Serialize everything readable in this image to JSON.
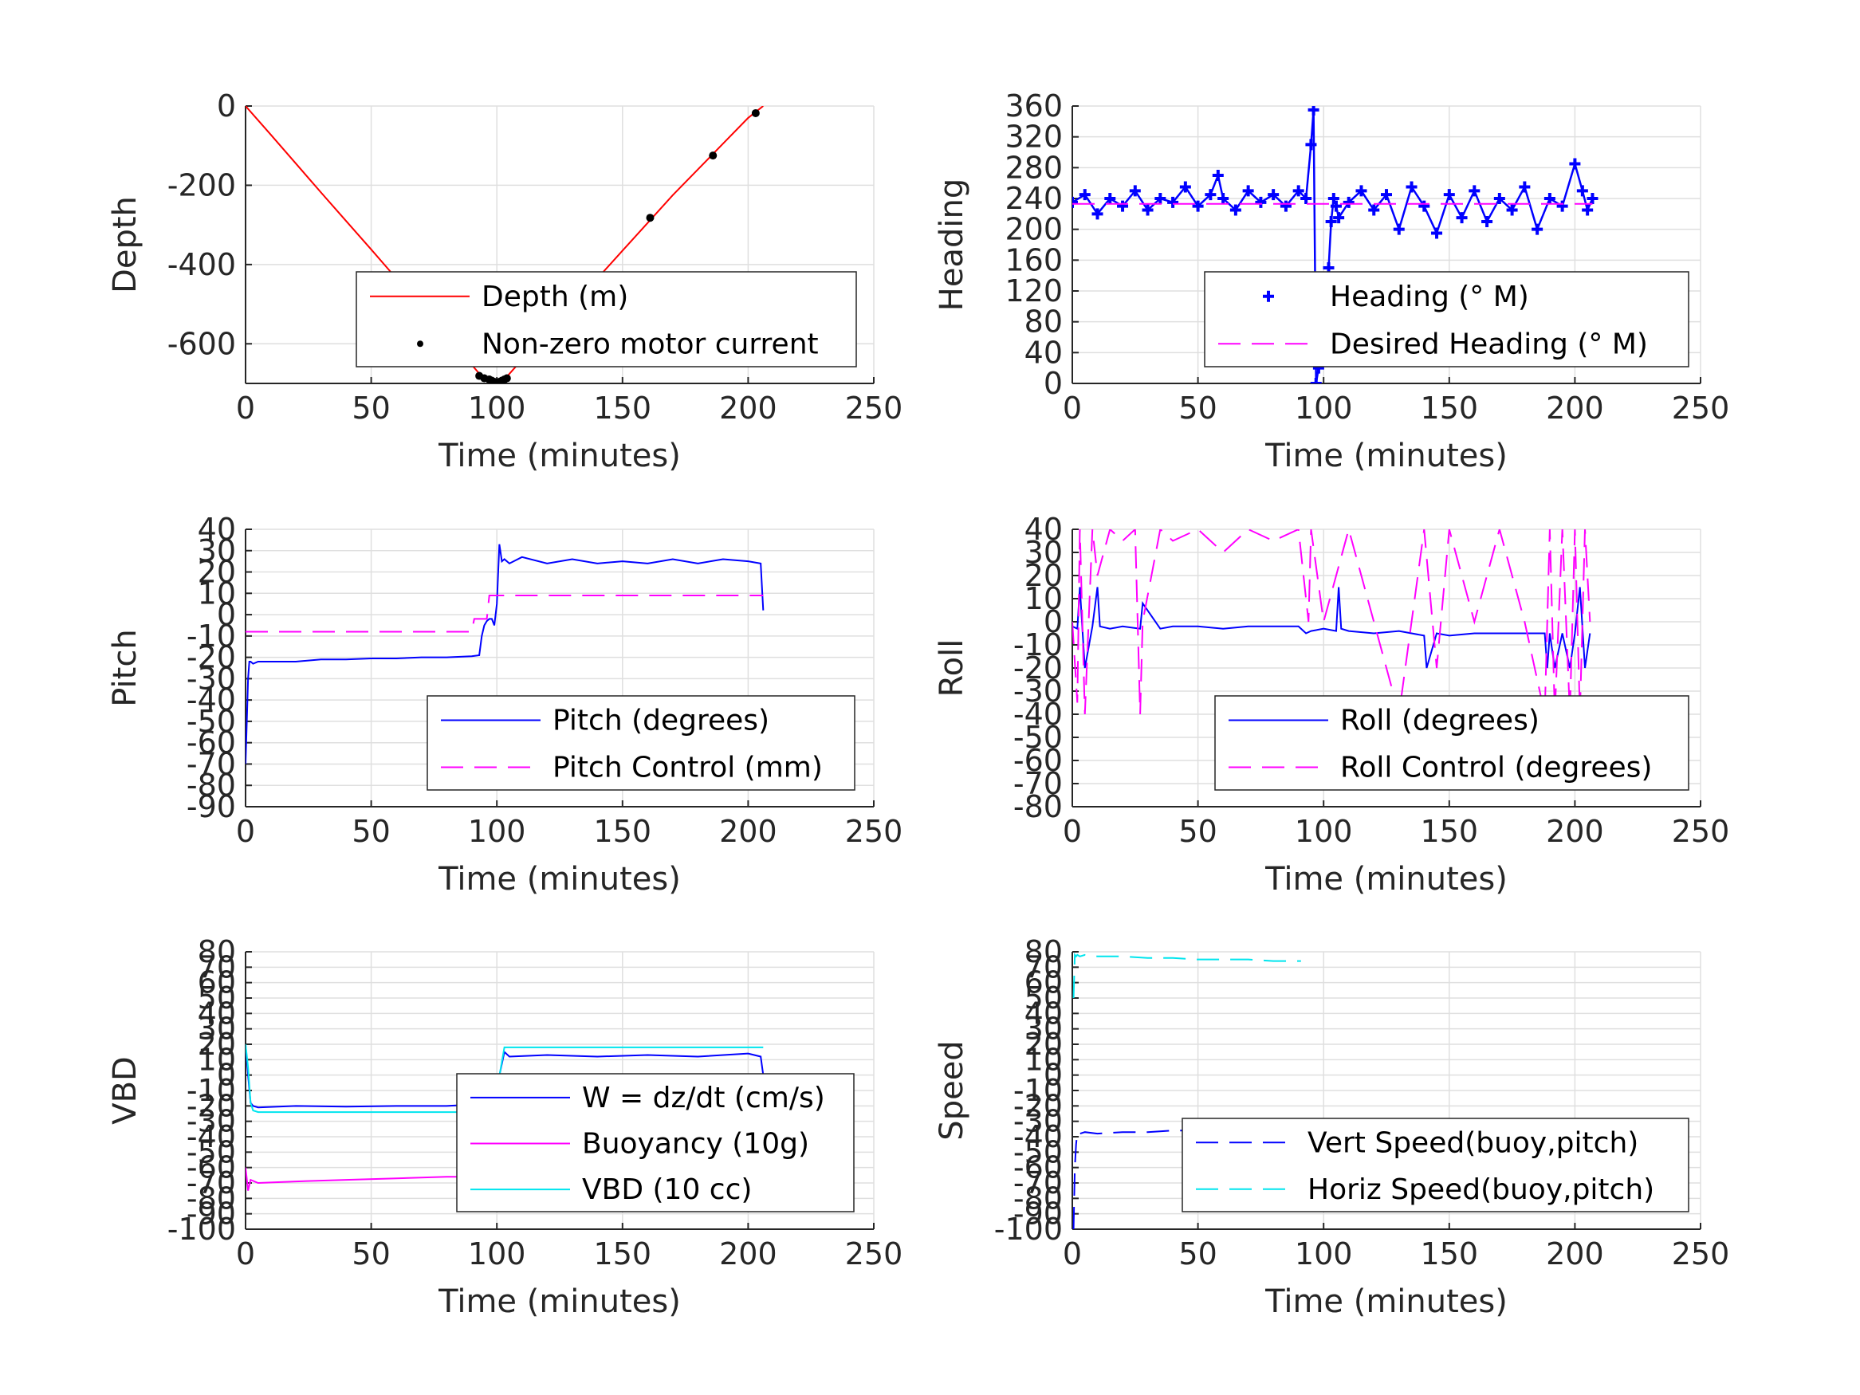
{
  "chart_data": [
    {
      "type": "line",
      "xlabel": "Time (minutes)",
      "ylabel": "Depth",
      "xlim": [
        0,
        250
      ],
      "ylim": [
        -700,
        0
      ],
      "xticks": [
        "0",
        "50",
        "100",
        "150",
        "200",
        "250"
      ],
      "yticks": [
        "0",
        "-200",
        "-400",
        "-600"
      ],
      "yticks_values": [
        0,
        -200,
        -400,
        -600
      ],
      "grid": true,
      "legend_placement": "lower-right",
      "series": [
        {
          "name": "Depth (m)",
          "style": "solid",
          "color": "#ff0000",
          "x": [
            0,
            10,
            20,
            30,
            40,
            50,
            60,
            70,
            80,
            90,
            95,
            100,
            103,
            110,
            120,
            130,
            140,
            150,
            160,
            170,
            180,
            190,
            200,
            206
          ],
          "y": [
            0,
            -72,
            -145,
            -218,
            -290,
            -362,
            -435,
            -508,
            -580,
            -653,
            -690,
            -700,
            -690,
            -640,
            -575,
            -505,
            -435,
            -365,
            -295,
            -225,
            -160,
            -95,
            -30,
            0
          ]
        },
        {
          "name": "Non-zero motor current",
          "style": "dots",
          "color": "#000000",
          "x": [
            93,
            95,
            97,
            98,
            99,
            100,
            101,
            102,
            103,
            104,
            161,
            186,
            203
          ],
          "y": [
            -681,
            -687,
            -690,
            -693,
            -696,
            -698,
            -696,
            -693,
            -690,
            -687,
            -282,
            -125,
            -18
          ]
        }
      ]
    },
    {
      "type": "scatter",
      "xlabel": "Time (minutes)",
      "ylabel": "Heading",
      "xlim": [
        0,
        250
      ],
      "ylim": [
        0,
        360
      ],
      "xticks": [
        "0",
        "50",
        "100",
        "150",
        "200",
        "250"
      ],
      "yticks": [
        "0",
        "40",
        "80",
        "120",
        "160",
        "200",
        "240",
        "280",
        "320",
        "360"
      ],
      "yticks_values": [
        0,
        40,
        80,
        120,
        160,
        200,
        240,
        280,
        320,
        360
      ],
      "grid": true,
      "legend_placement": "lower-right",
      "series": [
        {
          "name": "Heading (° M)",
          "style": "plus",
          "color": "#0000ff",
          "x": [
            0,
            5,
            10,
            15,
            20,
            25,
            30,
            35,
            40,
            45,
            50,
            55,
            58,
            60,
            65,
            70,
            75,
            80,
            85,
            90,
            93,
            95,
            96,
            97,
            98,
            99,
            100,
            101,
            102,
            103,
            104,
            105,
            106,
            110,
            115,
            120,
            125,
            130,
            135,
            140,
            145,
            150,
            155,
            160,
            165,
            170,
            175,
            180,
            185,
            190,
            195,
            200,
            203,
            205,
            207
          ],
          "y": [
            235,
            245,
            220,
            240,
            230,
            250,
            225,
            240,
            235,
            255,
            230,
            245,
            270,
            240,
            225,
            250,
            235,
            245,
            230,
            250,
            240,
            310,
            355,
            0,
            20,
            40,
            60,
            75,
            150,
            210,
            240,
            230,
            215,
            235,
            250,
            225,
            245,
            200,
            255,
            230,
            195,
            245,
            215,
            250,
            210,
            240,
            225,
            255,
            200,
            240,
            230,
            285,
            250,
            225,
            240
          ]
        },
        {
          "name": "Desired Heading (° M)",
          "style": "dashed",
          "color": "#ff00ff",
          "x": [
            0,
            96,
            97,
            207
          ],
          "y": [
            233,
            233,
            233,
            233
          ]
        }
      ]
    },
    {
      "type": "line",
      "xlabel": "Time (minutes)",
      "ylabel": "Pitch",
      "xlim": [
        0,
        250
      ],
      "ylim": [
        -90,
        40
      ],
      "xticks": [
        "0",
        "50",
        "100",
        "150",
        "200",
        "250"
      ],
      "yticks": [
        "40",
        "30",
        "20",
        "10",
        "0",
        "-10",
        "-20",
        "-30",
        "-40",
        "-50",
        "-60",
        "-70",
        "-80",
        "-90"
      ],
      "yticks_values": [
        40,
        30,
        20,
        10,
        0,
        -10,
        -20,
        -30,
        -40,
        -50,
        -60,
        -70,
        -80,
        -90
      ],
      "grid": true,
      "legend_placement": "lower-right",
      "series": [
        {
          "name": "Pitch (degrees)",
          "style": "solid",
          "color": "#0000ff",
          "x": [
            0,
            1,
            1.5,
            2,
            3,
            5,
            20,
            30,
            40,
            50,
            60,
            70,
            80,
            90,
            93,
            94,
            95,
            96,
            97,
            98,
            99,
            100,
            101,
            102,
            103,
            105,
            110,
            120,
            130,
            140,
            150,
            160,
            170,
            180,
            190,
            200,
            205,
            206
          ],
          "y": [
            -70,
            -30,
            -22,
            -22,
            -23,
            -22,
            -22,
            -21,
            -21,
            -20.5,
            -20.5,
            -20,
            -20,
            -19.5,
            -19,
            -10,
            -5,
            -3,
            -2,
            -2,
            -5,
            5,
            33,
            25,
            26,
            24,
            27,
            24,
            26,
            24,
            25,
            24,
            26,
            24,
            26,
            25,
            24,
            2
          ]
        },
        {
          "name": "Pitch Control (mm)",
          "style": "dashed",
          "color": "#ff00ff",
          "x": [
            0,
            90,
            91,
            96,
            97,
            98,
            200,
            206
          ],
          "y": [
            -8,
            -8,
            -2,
            -2,
            9,
            9,
            9,
            9
          ]
        }
      ]
    },
    {
      "type": "line",
      "xlabel": "Time (minutes)",
      "ylabel": "Roll",
      "xlim": [
        0,
        250
      ],
      "ylim": [
        -80,
        40
      ],
      "xticks": [
        "0",
        "50",
        "100",
        "150",
        "200",
        "250"
      ],
      "yticks": [
        "40",
        "30",
        "20",
        "10",
        "0",
        "-10",
        "-20",
        "-30",
        "-40",
        "-50",
        "-60",
        "-70",
        "-80"
      ],
      "yticks_values": [
        40,
        30,
        20,
        10,
        0,
        -10,
        -20,
        -30,
        -40,
        -50,
        -60,
        -70,
        -80
      ],
      "grid": true,
      "legend_placement": "lower-right",
      "series": [
        {
          "name": "Roll (degrees)",
          "style": "solid",
          "color": "#0000ff",
          "x": [
            0,
            2,
            3,
            4,
            5,
            8,
            10,
            11,
            15,
            20,
            27,
            28,
            35,
            40,
            50,
            60,
            70,
            80,
            90,
            93,
            95,
            100,
            105,
            106,
            107,
            110,
            120,
            130,
            135,
            140,
            141,
            145,
            150,
            160,
            170,
            180,
            188,
            189,
            190,
            192,
            195,
            198,
            200,
            202,
            204,
            206
          ],
          "y": [
            -2,
            -3,
            15,
            -3,
            -20,
            -2,
            15,
            -2,
            -3,
            -2,
            -3,
            8,
            -3,
            -2,
            -2,
            -3,
            -2,
            -2,
            -2,
            -5,
            -4,
            -3,
            -4,
            15,
            -3,
            -4,
            -5,
            -4,
            -5,
            -6,
            -20,
            -5,
            -6,
            -5,
            -5,
            -5,
            -5,
            -20,
            -5,
            -20,
            -5,
            -20,
            -5,
            15,
            -20,
            -5
          ]
        },
        {
          "name": "Roll Control (degrees)",
          "style": "dashed",
          "color": "#ff00ff",
          "x": [
            0,
            2,
            3,
            5,
            8,
            10,
            15,
            20,
            25,
            27,
            28,
            35,
            40,
            50,
            60,
            70,
            80,
            90,
            94,
            95,
            100,
            110,
            120,
            130,
            135,
            140,
            145,
            150,
            160,
            170,
            180,
            188,
            190,
            192,
            195,
            198,
            200,
            202,
            204,
            206
          ],
          "y": [
            0,
            -35,
            40,
            -40,
            40,
            20,
            40,
            35,
            40,
            -40,
            0,
            40,
            35,
            40,
            30,
            40,
            35,
            40,
            0,
            40,
            0,
            40,
            0,
            -40,
            0,
            40,
            -20,
            40,
            0,
            40,
            0,
            -40,
            40,
            -40,
            40,
            -40,
            40,
            -40,
            40,
            0
          ]
        }
      ]
    },
    {
      "type": "line",
      "xlabel": "Time (minutes)",
      "ylabel": "VBD",
      "xlim": [
        0,
        250
      ],
      "ylim": [
        -100,
        80
      ],
      "xticks": [
        "0",
        "50",
        "100",
        "150",
        "200",
        "250"
      ],
      "yticks": [
        "80",
        "70",
        "60",
        "50",
        "40",
        "30",
        "20",
        "10",
        "0",
        "-10",
        "-20",
        "-30",
        "-40",
        "-50",
        "-60",
        "-70",
        "-80",
        "-90",
        "-100"
      ],
      "yticks_values": [
        80,
        70,
        60,
        50,
        40,
        30,
        20,
        10,
        0,
        -10,
        -20,
        -30,
        -40,
        -50,
        -60,
        -70,
        -80,
        -90,
        -100
      ],
      "grid": true,
      "legend_placement": "lower-right",
      "series": [
        {
          "name": "W = dz/dt (cm/s)",
          "style": "solid",
          "color": "#0000ff",
          "x": [
            0,
            1,
            2,
            3,
            5,
            20,
            40,
            60,
            80,
            92,
            94,
            96,
            98,
            100,
            103,
            105,
            120,
            140,
            160,
            180,
            200,
            205,
            206
          ],
          "y": [
            20,
            0,
            -18,
            -20,
            -21,
            -20,
            -20.5,
            -20,
            -20,
            -19,
            -15,
            -18,
            -12,
            -8,
            15,
            12,
            13,
            12,
            13,
            12,
            14,
            12,
            0
          ]
        },
        {
          "name": "Buoyancy (10g)",
          "style": "solid",
          "color": "#ff00ff",
          "x": [
            0,
            1,
            2,
            5,
            20,
            40,
            60,
            80,
            92
          ],
          "y": [
            -60,
            -75,
            -68,
            -70,
            -69,
            -68,
            -67,
            -66,
            -66
          ]
        },
        {
          "name": "VBD (10 cc)",
          "style": "solid",
          "color": "#00e5ee",
          "x": [
            0,
            1,
            2,
            3,
            5,
            50,
            90,
            93,
            100,
            103,
            120,
            160,
            200,
            206
          ],
          "y": [
            20,
            5,
            -18,
            -23,
            -24,
            -24,
            -24,
            -23,
            -10,
            18,
            18,
            18,
            18,
            18
          ]
        }
      ]
    },
    {
      "type": "line",
      "xlabel": "Time (minutes)",
      "ylabel": "Speed",
      "xlim": [
        0,
        250
      ],
      "ylim": [
        -100,
        80
      ],
      "xticks": [
        "0",
        "50",
        "100",
        "150",
        "200",
        "250"
      ],
      "yticks": [
        "80",
        "70",
        "60",
        "50",
        "40",
        "30",
        "20",
        "10",
        "0",
        "-10",
        "-20",
        "-30",
        "-40",
        "-50",
        "-60",
        "-70",
        "-80",
        "-90",
        "-100"
      ],
      "yticks_values": [
        80,
        70,
        60,
        50,
        40,
        30,
        20,
        10,
        0,
        -10,
        -20,
        -30,
        -40,
        -50,
        -60,
        -70,
        -80,
        -90,
        -100
      ],
      "grid": true,
      "legend_placement": "lower-right",
      "series": [
        {
          "name": "Vert Speed(buoy,pitch)",
          "style": "dashed",
          "color": "#0000ff",
          "x": [
            0.5,
            1,
            1.5,
            2,
            3,
            5,
            10,
            20,
            30,
            40,
            50,
            60,
            70,
            80,
            91
          ],
          "y": [
            -100,
            -60,
            -45,
            -37,
            -38,
            -37,
            -38,
            -37,
            -37,
            -36,
            -36,
            -35,
            -35,
            -34,
            -34
          ]
        },
        {
          "name": "Horiz Speed(buoy,pitch)",
          "style": "dashed",
          "color": "#00e5ee",
          "x": [
            0.5,
            1,
            1.5,
            2,
            3,
            5,
            10,
            20,
            30,
            40,
            50,
            60,
            70,
            80,
            91
          ],
          "y": [
            50,
            78,
            77,
            78,
            77,
            78,
            77,
            77,
            76,
            76,
            75,
            75,
            75,
            74,
            74
          ]
        }
      ]
    }
  ]
}
